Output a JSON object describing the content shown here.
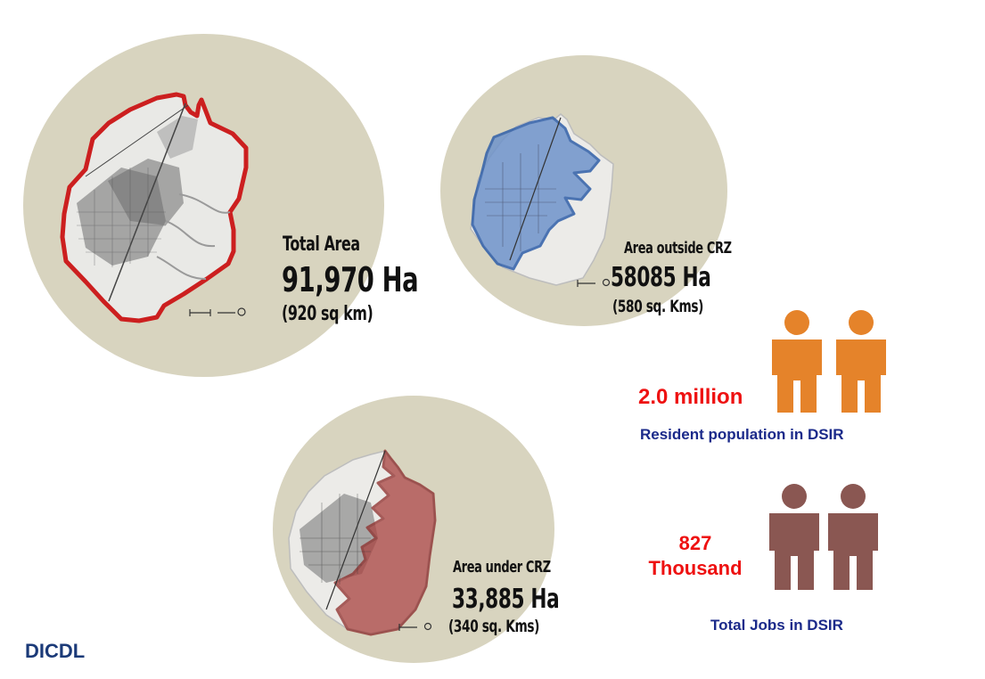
{
  "panels": {
    "total": {
      "label": "Total Area",
      "value": "91,970 Ha",
      "sub": "(920 sq km)"
    },
    "outside": {
      "label": "Area outside CRZ",
      "value": "58085 Ha",
      "sub": "(580 sq. Kms)"
    },
    "under": {
      "label": "Area under CRZ",
      "value": "33,885 Ha",
      "sub": "(340 sq. Kms)"
    }
  },
  "population": {
    "value": "2.0 million",
    "caption": "Resident population in DSIR",
    "icon_color": "#e5832a"
  },
  "jobs": {
    "value_line1": "827",
    "value_line2": "Thousand",
    "caption": "Total Jobs in DSIR",
    "icon_color": "#8a5752"
  },
  "brand": "DICDL",
  "colors": {
    "circle": "#d8d4bf",
    "total_outline": "#cc1f1f",
    "outside_fill": "#6f93cb",
    "under_fill": "#a8423f",
    "metric_text": "#ee1111",
    "caption_text": "#1b2a8a"
  }
}
